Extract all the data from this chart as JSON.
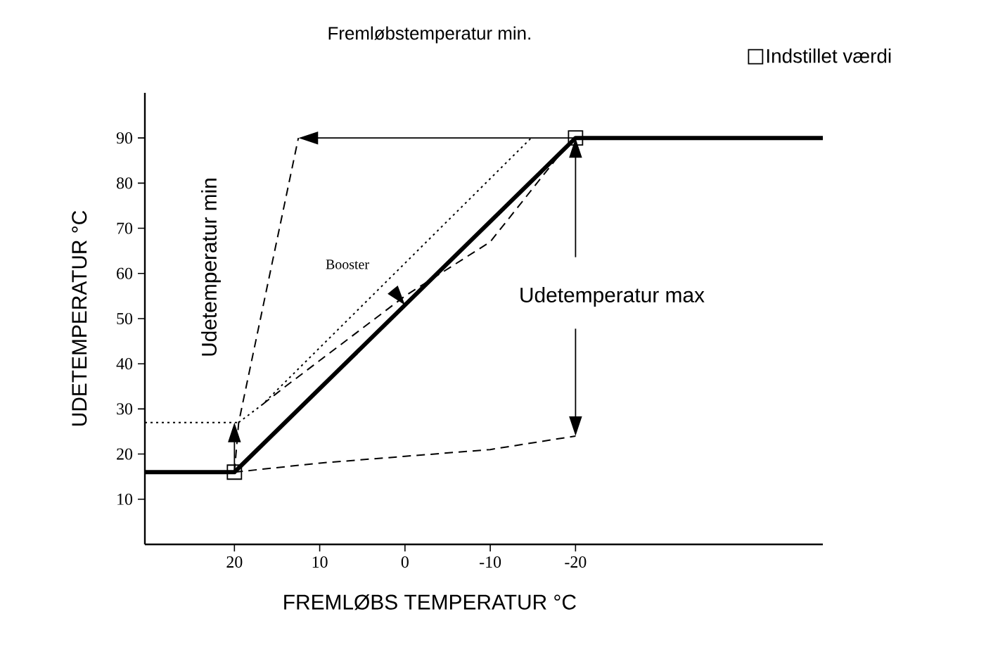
{
  "chart_data": {
    "type": "line",
    "title": "Fremløbstemperatur min.",
    "xlabel": "FREMLØBS TEMPERATUR °C",
    "ylabel": "UDETEMPERATUR °C",
    "xlim": [
      30.5,
      -49
    ],
    "ylim": [
      0,
      100
    ],
    "xticks": [
      20,
      10,
      0,
      -10,
      -20
    ],
    "yticks": [
      10,
      20,
      30,
      40,
      50,
      60,
      70,
      80,
      90
    ],
    "legend": "top right",
    "grid": false,
    "series": [
      {
        "color": "#000000",
        "line_style": "solid",
        "x": [
          30.5,
          20,
          -20,
          -49
        ],
        "values": [
          16,
          16,
          90,
          90
        ]
      },
      {
        "color": "#000000",
        "line_style": "dashed",
        "x": [
          20,
          10,
          0,
          -10,
          -20
        ],
        "values": [
          16,
          18,
          19.5,
          21,
          24
        ]
      },
      {
        "color": "#000000",
        "line_style": "dashed",
        "x": [
          20,
          19.5,
          12.5
        ],
        "values": [
          16,
          27,
          90
        ]
      },
      {
        "color": "#000000",
        "line_style": "dotted",
        "x": [
          30.5,
          19.5
        ],
        "values": [
          27,
          27
        ]
      },
      {
        "color": "#000000",
        "line_style": "dotted",
        "x": [
          19.5,
          16.7,
          -14.8
        ],
        "values": [
          27,
          31,
          90
        ]
      },
      {
        "color": "#000000",
        "line_style": "dashed",
        "x": [
          16.7,
          14,
          0,
          -10,
          -18
        ],
        "values": [
          31,
          35,
          55,
          67,
          86
        ]
      },
      {
        "type": "scatter",
        "name": "Indstillet værdi",
        "color": "#000000",
        "marker": "square",
        "x": [
          20,
          -20
        ],
        "values": [
          16,
          90
        ]
      }
    ],
    "annotations": [
      "Udetemperatur min",
      "Udetemperatur max",
      "Booster"
    ]
  }
}
